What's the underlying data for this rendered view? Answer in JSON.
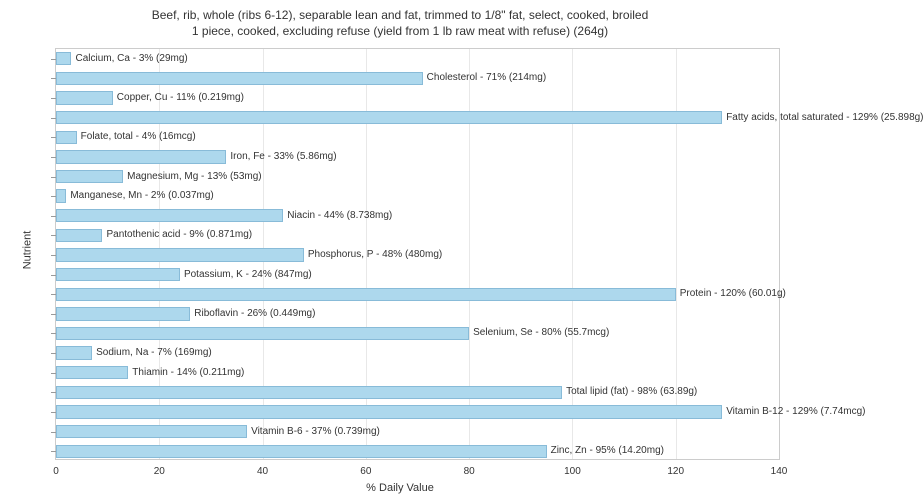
{
  "chart": {
    "type": "bar",
    "orientation": "horizontal",
    "title_line1": "Beef, rib, whole (ribs 6-12), separable lean and fat, trimmed to 1/8\" fat, select, cooked, broiled",
    "title_line2": "1 piece, cooked, excluding refuse (yield from 1 lb raw meat with refuse) (264g)",
    "title_fontsize": 12,
    "xlabel": "% Daily Value",
    "ylabel": "Nutrient",
    "axis_label_fontsize": 11,
    "xlim_min": 0,
    "xlim_max": 140,
    "xtick_step": 20,
    "xticks": [
      0,
      20,
      40,
      60,
      80,
      100,
      120,
      140
    ],
    "grid_color": "#e8e8e8",
    "border_color": "#cccccc",
    "background_color": "#ffffff",
    "bar_fill": "#add8ed",
    "bar_border": "#88bbd8",
    "label_fontsize": 10,
    "label_color": "#333333",
    "nutrients": [
      {
        "label": "Calcium, Ca - 3% (29mg)",
        "value": 3
      },
      {
        "label": "Cholesterol - 71% (214mg)",
        "value": 71
      },
      {
        "label": "Copper, Cu - 11% (0.219mg)",
        "value": 11
      },
      {
        "label": "Fatty acids, total saturated - 129% (25.898g)",
        "value": 129
      },
      {
        "label": "Folate, total - 4% (16mcg)",
        "value": 4
      },
      {
        "label": "Iron, Fe - 33% (5.86mg)",
        "value": 33
      },
      {
        "label": "Magnesium, Mg - 13% (53mg)",
        "value": 13
      },
      {
        "label": "Manganese, Mn - 2% (0.037mg)",
        "value": 2
      },
      {
        "label": "Niacin - 44% (8.738mg)",
        "value": 44
      },
      {
        "label": "Pantothenic acid - 9% (0.871mg)",
        "value": 9
      },
      {
        "label": "Phosphorus, P - 48% (480mg)",
        "value": 48
      },
      {
        "label": "Potassium, K - 24% (847mg)",
        "value": 24
      },
      {
        "label": "Protein - 120% (60.01g)",
        "value": 120
      },
      {
        "label": "Riboflavin - 26% (0.449mg)",
        "value": 26
      },
      {
        "label": "Selenium, Se - 80% (55.7mcg)",
        "value": 80
      },
      {
        "label": "Sodium, Na - 7% (169mg)",
        "value": 7
      },
      {
        "label": "Thiamin - 14% (0.211mg)",
        "value": 14
      },
      {
        "label": "Total lipid (fat) - 98% (63.89g)",
        "value": 98
      },
      {
        "label": "Vitamin B-12 - 129% (7.74mcg)",
        "value": 129
      },
      {
        "label": "Vitamin B-6 - 37% (0.739mg)",
        "value": 37
      },
      {
        "label": "Zinc, Zn - 95% (14.20mg)",
        "value": 95
      }
    ]
  }
}
